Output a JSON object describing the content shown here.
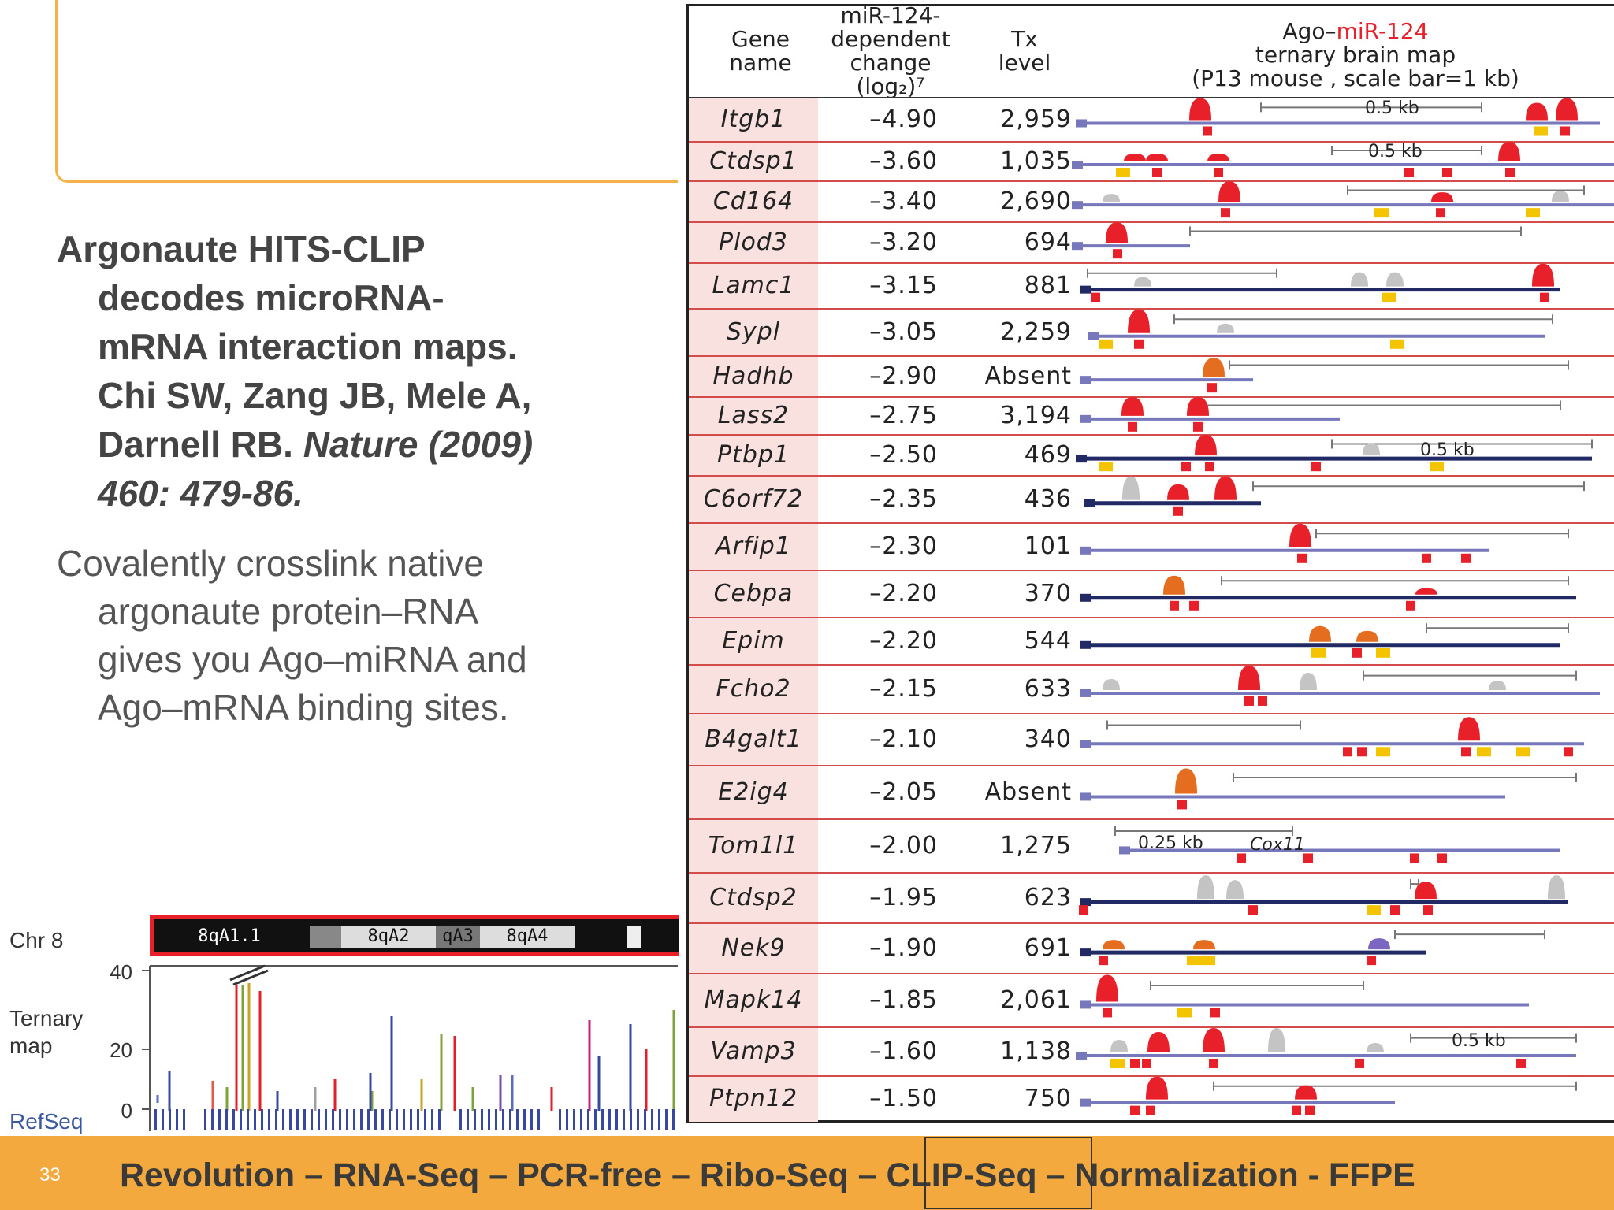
{
  "slide": {
    "reference_lines": [
      "Argonaute HITS-CLIP",
      "decodes microRNA-",
      "mRNA interaction maps.",
      "Chi SW, Zang JB, Mele A,",
      "Darnell RB."
    ],
    "reference_journal": "Nature (2009)",
    "reference_pages": "460: 479-86.",
    "description_lines": [
      "Covalently crosslink native",
      "argonaute protein–RNA",
      "gives you Ago–miRNA and",
      "Ago–mRNA binding sites."
    ],
    "page_number": "33",
    "footer_before": "Revolution – RNA-Seq – PCR-free – Ribo-Seq –",
    "footer_boxed": "CLIP-Seq",
    "footer_after": "– Normalization - FFPE"
  },
  "browser": {
    "chr_label": "Chr 8",
    "ternary_label_1": "Ternary",
    "ternary_label_2": "map",
    "refseq_label": "RefSeq",
    "bands": [
      "8qA1.1",
      "8qA2",
      "qA3",
      "8qA4"
    ],
    "y_ticks": [
      "40",
      "20",
      "0"
    ]
  },
  "table": {
    "header_gene_1": "Gene",
    "header_gene_2": "name",
    "header_change_1": "miR-124-",
    "header_change_2": "dependent",
    "header_change_3": "change",
    "header_change_4": "(log₂)⁷",
    "header_tx_1": "Tx",
    "header_tx_2": "level",
    "header_map_1a": "Ago–",
    "header_map_1b": "miR-124",
    "header_map_2": "ternary brain map",
    "header_map_3": "(P13 mouse , scale bar=1 kb)",
    "scale_labels": [
      "0.5 kb",
      "0.5 kb",
      "0.5 kb",
      "0.25 kb",
      "0.5 kb"
    ],
    "cox_label": "Cox11",
    "rows": [
      {
        "gene": "Itgb1",
        "change": "–4.90",
        "tx": "2,959"
      },
      {
        "gene": "Ctdsp1",
        "change": "–3.60",
        "tx": "1,035"
      },
      {
        "gene": "Cd164",
        "change": "–3.40",
        "tx": "2,690"
      },
      {
        "gene": "Plod3",
        "change": "–3.20",
        "tx": "694"
      },
      {
        "gene": "Lamc1",
        "change": "–3.15",
        "tx": "881"
      },
      {
        "gene": "Sypl",
        "change": "–3.05",
        "tx": "2,259"
      },
      {
        "gene": "Hadhb",
        "change": "–2.90",
        "tx": "Absent"
      },
      {
        "gene": "Lass2",
        "change": "–2.75",
        "tx": "3,194"
      },
      {
        "gene": "Ptbp1",
        "change": "–2.50",
        "tx": "469"
      },
      {
        "gene": "C6orf72",
        "change": "–2.35",
        "tx": "436"
      },
      {
        "gene": "Arfip1",
        "change": "–2.30",
        "tx": "101"
      },
      {
        "gene": "Cebpa",
        "change": "–2.20",
        "tx": "370"
      },
      {
        "gene": "Epim",
        "change": "–2.20",
        "tx": "544"
      },
      {
        "gene": "Fcho2",
        "change": "–2.15",
        "tx": "633"
      },
      {
        "gene": "B4galt1",
        "change": "–2.10",
        "tx": "340"
      },
      {
        "gene": "E2ig4",
        "change": "–2.05",
        "tx": "Absent"
      },
      {
        "gene": "Tom1l1",
        "change": "–2.00",
        "tx": "1,275"
      },
      {
        "gene": "Ctdsp2",
        "change": "–1.95",
        "tx": "623"
      },
      {
        "gene": "Nek9",
        "change": "–1.90",
        "tx": "691"
      },
      {
        "gene": "Mapk14",
        "change": "–1.85",
        "tx": "2,061"
      },
      {
        "gene": "Vamp3",
        "change": "–1.60",
        "tx": "1,138"
      },
      {
        "gene": "Ptpn12",
        "change": "–1.50",
        "tx": "750"
      }
    ]
  },
  "colors": {
    "accent": "#f3a93d",
    "peak": "#e8202a",
    "site": "#f5c400",
    "transcript": "#7777bb",
    "grey_peak": "#c4c4c4"
  }
}
